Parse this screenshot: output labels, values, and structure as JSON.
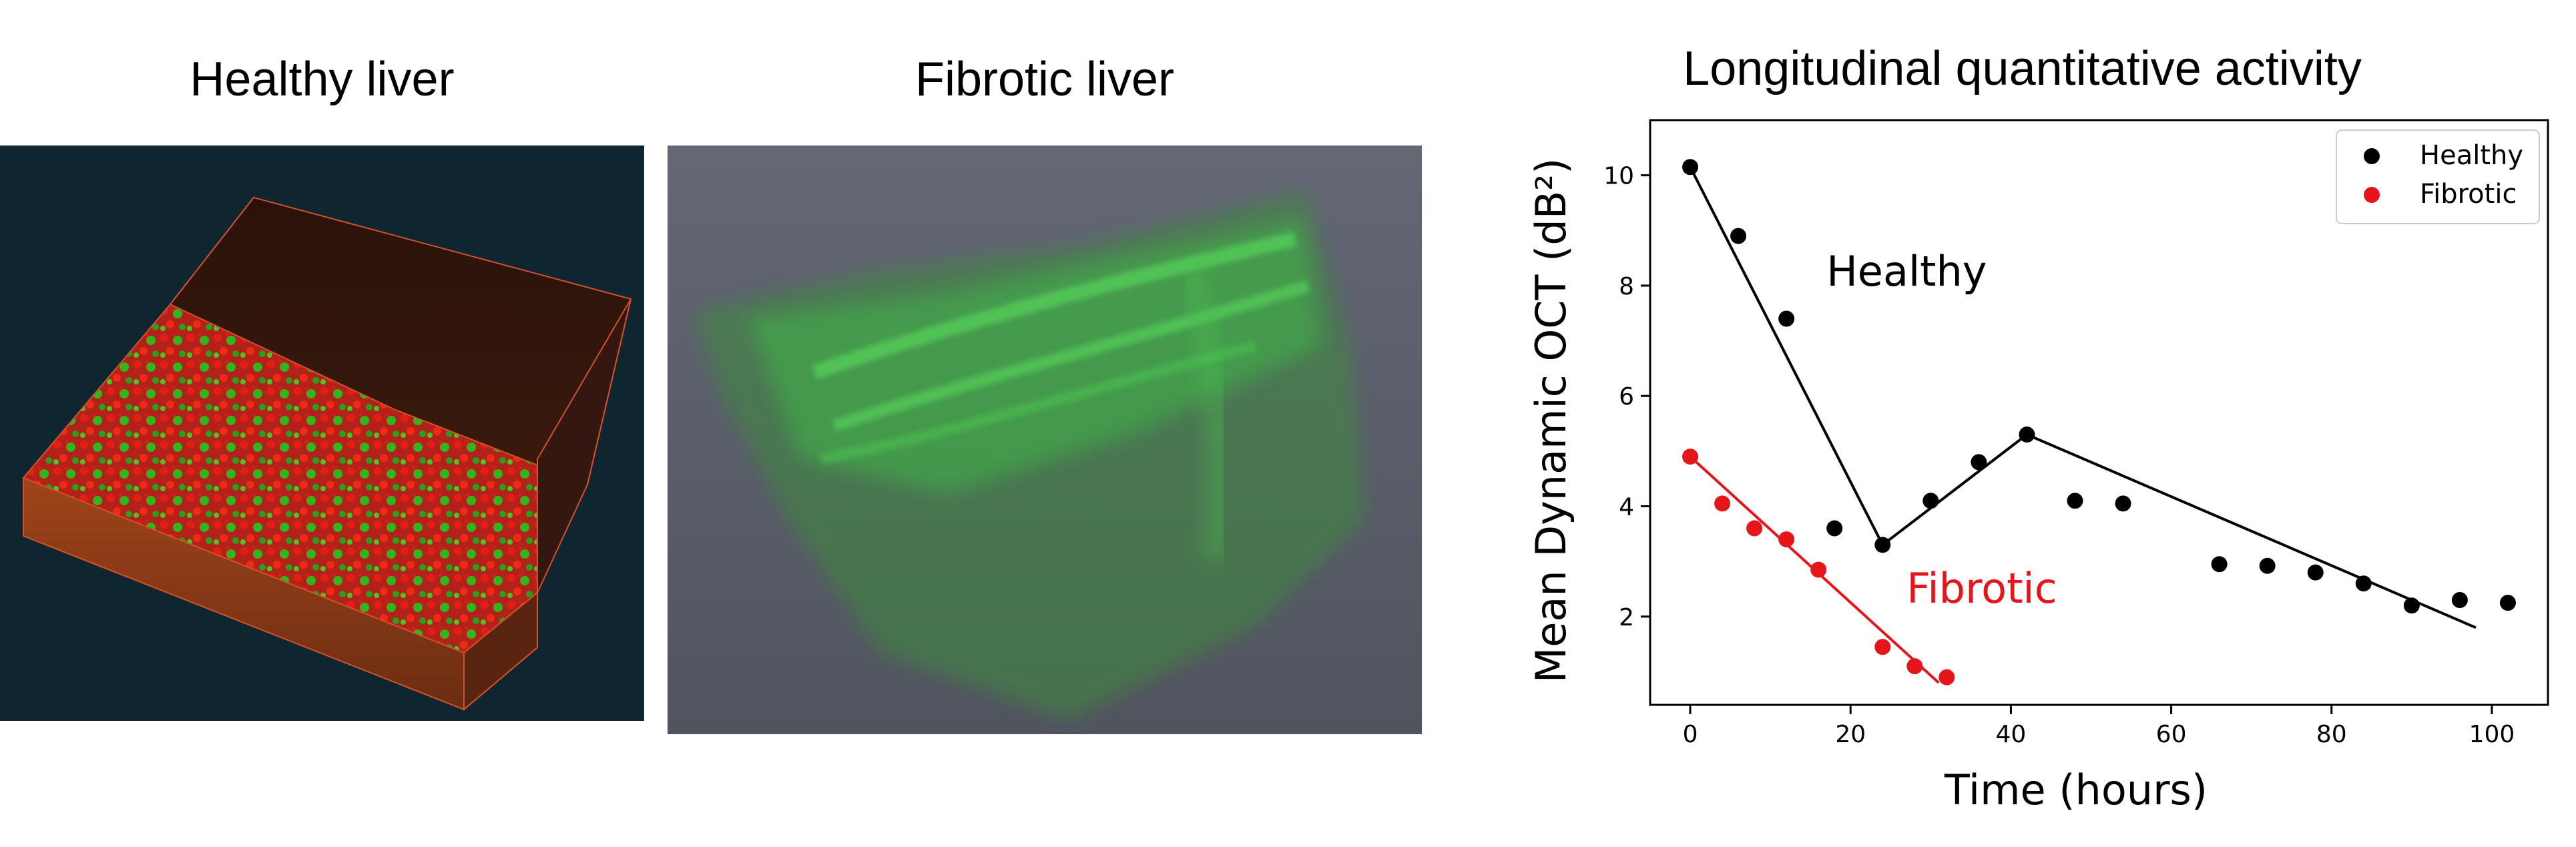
{
  "panels": {
    "healthy_title": "Healthy liver",
    "fibrotic_title": "Fibrotic liver"
  },
  "colors": {
    "healthy": "#000000",
    "fibrotic": "#e8141b",
    "healthy_bg": "#0f2630",
    "fibrotic_bg": "#5f6470"
  },
  "chart_data": {
    "type": "scatter",
    "title": "Longitudinal quantitative activity",
    "xlabel": "Time (hours)",
    "ylabel": "Mean Dynamic OCT (dB²)",
    "xlim": [
      -5,
      107
    ],
    "ylim": [
      0.4,
      11.0
    ],
    "xticks": [
      0,
      20,
      40,
      60,
      80,
      100
    ],
    "yticks": [
      2,
      4,
      6,
      8,
      10
    ],
    "legend_position": "top-right",
    "series": [
      {
        "name": "Healthy",
        "color": "#000000",
        "points": [
          [
            0,
            10.15
          ],
          [
            6,
            8.9
          ],
          [
            12,
            7.4
          ],
          [
            18,
            3.6
          ],
          [
            24,
            3.3
          ],
          [
            30,
            4.1
          ],
          [
            36,
            4.8
          ],
          [
            42,
            5.3
          ],
          [
            48,
            4.1
          ],
          [
            54,
            4.05
          ],
          [
            66,
            2.95
          ],
          [
            72,
            2.92
          ],
          [
            78,
            2.8
          ],
          [
            84,
            2.6
          ],
          [
            90,
            2.2
          ],
          [
            96,
            2.3
          ],
          [
            102,
            2.25
          ]
        ],
        "fit": [
          [
            0,
            10.15
          ],
          [
            24,
            3.3
          ],
          [
            42,
            5.3
          ],
          [
            98,
            1.8
          ]
        ]
      },
      {
        "name": "Fibrotic",
        "color": "#e8141b",
        "points": [
          [
            0,
            4.9
          ],
          [
            4,
            4.05
          ],
          [
            8,
            3.6
          ],
          [
            12,
            3.4
          ],
          [
            16,
            2.85
          ],
          [
            24,
            1.45
          ],
          [
            28,
            1.1
          ],
          [
            32,
            0.9
          ]
        ],
        "fit": [
          [
            0,
            4.9
          ],
          [
            31,
            0.8
          ]
        ]
      }
    ],
    "annotations": [
      {
        "text": "Healthy",
        "x": 17,
        "y": 8.0,
        "color": "#000000"
      },
      {
        "text": "Fibrotic",
        "x": 27,
        "y": 2.25,
        "color": "#e8141b"
      }
    ]
  }
}
